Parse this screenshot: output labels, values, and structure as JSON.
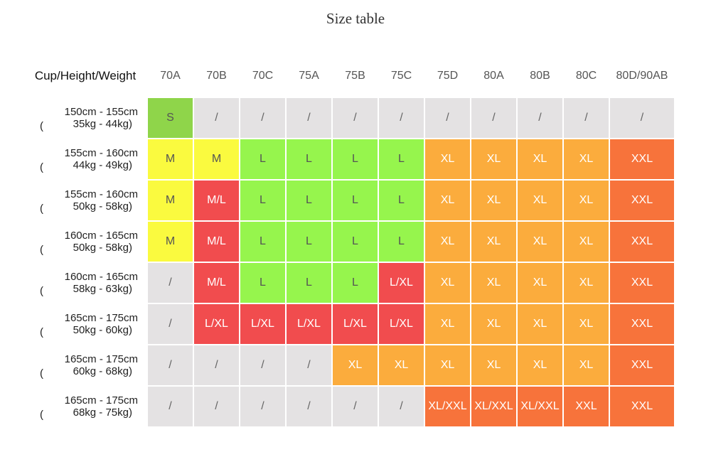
{
  "title": "Size table",
  "header": [
    "Cup/Height/Weight",
    "70A",
    "70B",
    "70C",
    "75A",
    "75B",
    "75C",
    "75D",
    "80A",
    "80B",
    "80C",
    "80D/90AB"
  ],
  "rows": [
    {
      "height": "150cm - 155cm",
      "weight": "35kg - 44kg)",
      "cells": [
        "S",
        "/",
        "/",
        "/",
        "/",
        "/",
        "/",
        "/",
        "/",
        "/",
        "/"
      ],
      "colors": [
        "s",
        "g",
        "g",
        "g",
        "g",
        "g",
        "g",
        "g",
        "g",
        "g",
        "g"
      ]
    },
    {
      "height": "155cm - 160cm",
      "weight": "44kg - 49kg)",
      "cells": [
        "M",
        "M",
        "L",
        "L",
        "L",
        "L",
        "XL",
        "XL",
        "XL",
        "XL",
        "XXL"
      ],
      "colors": [
        "y",
        "y",
        "lg",
        "lg",
        "lg",
        "lg",
        "o",
        "o",
        "o",
        "o",
        "do"
      ]
    },
    {
      "height": "155cm - 160cm",
      "weight": "50kg - 58kg)",
      "cells": [
        "M",
        "M/L",
        "L",
        "L",
        "L",
        "L",
        "XL",
        "XL",
        "XL",
        "XL",
        "XXL"
      ],
      "colors": [
        "y",
        "r",
        "lg",
        "lg",
        "lg",
        "lg",
        "o",
        "o",
        "o",
        "o",
        "do"
      ]
    },
    {
      "height": "160cm - 165cm",
      "weight": "50kg - 58kg)",
      "cells": [
        "M",
        "M/L",
        "L",
        "L",
        "L",
        "L",
        "XL",
        "XL",
        "XL",
        "XL",
        "XXL"
      ],
      "colors": [
        "y",
        "r",
        "lg",
        "lg",
        "lg",
        "lg",
        "o",
        "o",
        "o",
        "o",
        "do"
      ]
    },
    {
      "height": "160cm - 165cm",
      "weight": "58kg - 63kg)",
      "cells": [
        "/",
        "M/L",
        "L",
        "L",
        "L",
        "L/XL",
        "XL",
        "XL",
        "XL",
        "XL",
        "XXL"
      ],
      "colors": [
        "g",
        "r",
        "lg",
        "lg",
        "lg",
        "r",
        "o",
        "o",
        "o",
        "o",
        "do"
      ]
    },
    {
      "height": "165cm - 175cm",
      "weight": "50kg - 60kg)",
      "cells": [
        "/",
        "L/XL",
        "L/XL",
        "L/XL",
        "L/XL",
        "L/XL",
        "XL",
        "XL",
        "XL",
        "XL",
        "XXL"
      ],
      "colors": [
        "g",
        "r",
        "r",
        "r",
        "r",
        "r",
        "o",
        "o",
        "o",
        "o",
        "do"
      ]
    },
    {
      "height": "165cm - 175cm",
      "weight": "60kg - 68kg)",
      "cells": [
        "/",
        "/",
        "/",
        "/",
        "XL",
        "XL",
        "XL",
        "XL",
        "XL",
        "XL",
        "XXL"
      ],
      "colors": [
        "g",
        "g",
        "g",
        "g",
        "o",
        "o",
        "o",
        "o",
        "o",
        "o",
        "do"
      ]
    },
    {
      "height": "165cm - 175cm",
      "weight": "68kg - 75kg)",
      "cells": [
        "/",
        "/",
        "/",
        "/",
        "/",
        "/",
        "XL/XXL",
        "XL/XXL",
        "XL/XXL",
        "XXL",
        "XXL"
      ],
      "colors": [
        "g",
        "g",
        "g",
        "g",
        "g",
        "g",
        "do",
        "do",
        "do",
        "do",
        "do"
      ]
    }
  ],
  "paren": "("
}
